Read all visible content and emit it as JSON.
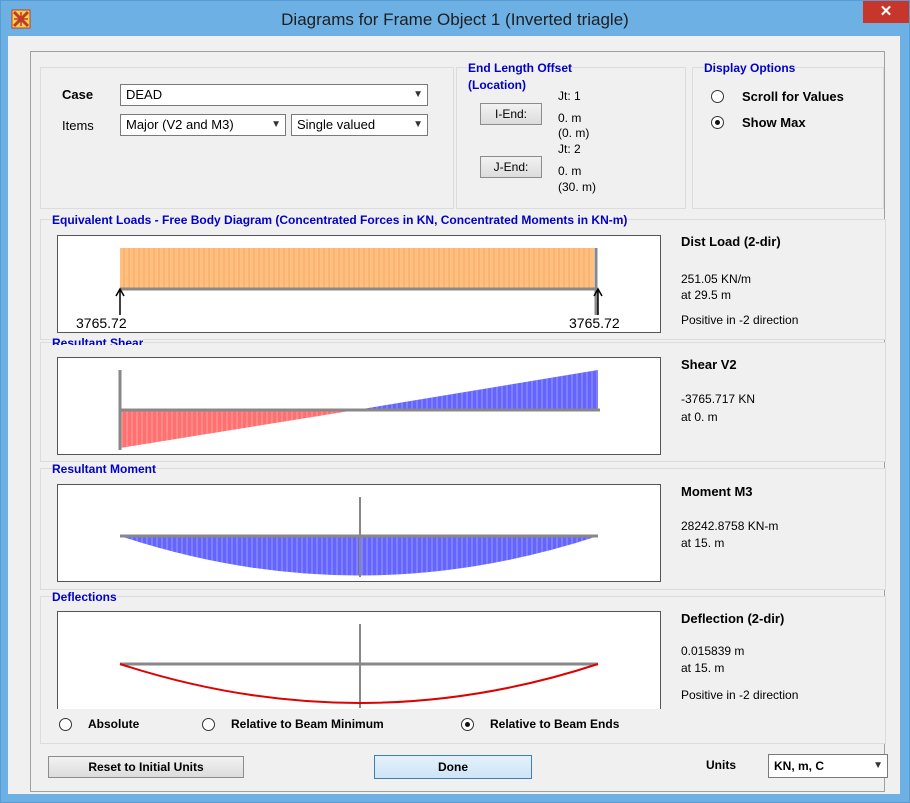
{
  "window": {
    "title": "Diagrams for Frame Object 1  (Inverted triagle)",
    "close_glyph": "✕"
  },
  "case": {
    "label": "Case",
    "value": "DEAD"
  },
  "items": {
    "label": "Items",
    "value": "Major (V2 and M3)",
    "mode": "Single valued"
  },
  "end_offset": {
    "title": "End Length Offset",
    "subtitle": "(Location)",
    "i_end": {
      "button": "I-End:",
      "jt": "Jt:  1",
      "len": "0. m",
      "loc": "(0. m)"
    },
    "j_end": {
      "button": "J-End:",
      "jt": "Jt:  2",
      "len": "0. m",
      "loc": "(30. m)"
    }
  },
  "display_options": {
    "title": "Display Options",
    "scroll": "Scroll for Values",
    "show_max": "Show Max",
    "selected": "show_max"
  },
  "load_panel": {
    "title": "Equivalent Loads - Free Body Diagram  (Concentrated Forces in KN, Concentrated Moments in KN-m)",
    "left_reaction": "3765.72",
    "right_reaction": "3765.72",
    "header": "Dist Load (2-dir)",
    "value": "251.05 KN/m",
    "at": "at 29.5 m",
    "note": "Positive in -2 direction",
    "fill_color": "#ffc080"
  },
  "shear_panel": {
    "title": "Resultant Shear",
    "header": "Shear V2",
    "value": "-3765.717 KN",
    "at": "at 0. m",
    "neg_color": "#ff7070",
    "pos_color": "#6464ff"
  },
  "moment_panel": {
    "title": "Resultant Moment",
    "header": "Moment M3",
    "value": "28242.8758 KN-m",
    "at": "at 15. m",
    "color": "#6464ff"
  },
  "deflection_panel": {
    "title": "Deflections",
    "header": "Deflection (2-dir)",
    "value": "0.015839 m",
    "at": "at 15. m",
    "note": "Positive in -2 direction",
    "curve_color": "#e00000",
    "options": [
      "Absolute",
      "Relative to Beam Minimum",
      "Relative to Beam Ends"
    ],
    "selected_index": 2
  },
  "footer": {
    "reset": "Reset to Initial Units",
    "done": "Done",
    "units_label": "Units",
    "units_value": "KN, m, C"
  }
}
